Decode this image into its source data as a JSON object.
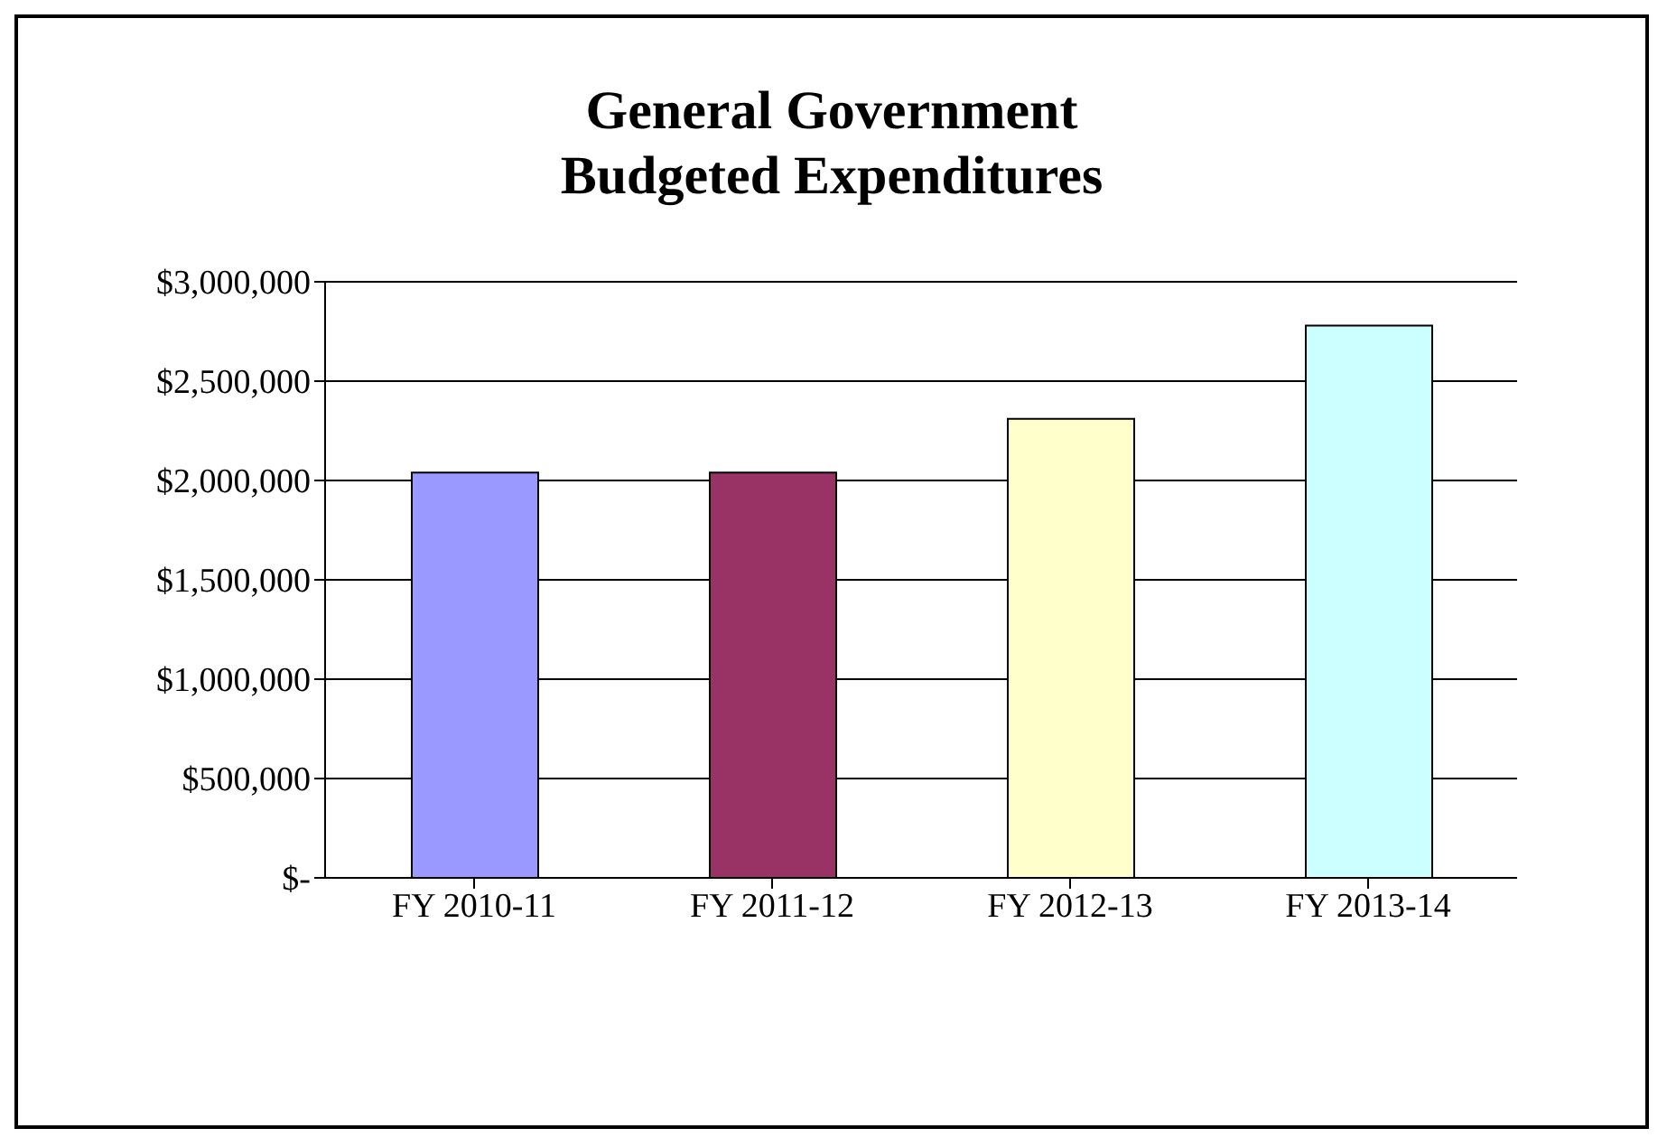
{
  "chart_data": {
    "type": "bar",
    "title": "General Government\nBudgeted Expenditures",
    "categories": [
      "FY 2010-11",
      "FY 2011-12",
      "FY 2012-13",
      "FY 2013-14"
    ],
    "values": [
      2040000,
      2040000,
      2310000,
      2780000
    ],
    "colors": [
      "#9999ff",
      "#993366",
      "#ffffcc",
      "#ccffff"
    ],
    "ylim": [
      0,
      3000000
    ],
    "yticks": [
      {
        "value": 0,
        "label": "$-"
      },
      {
        "value": 500000,
        "label": "$500,000"
      },
      {
        "value": 1000000,
        "label": "$1,000,000"
      },
      {
        "value": 1500000,
        "label": "$1,500,000"
      },
      {
        "value": 2000000,
        "label": "$2,000,000"
      },
      {
        "value": 2500000,
        "label": "$2,500,000"
      },
      {
        "value": 3000000,
        "label": "$3,000,000"
      }
    ],
    "grid": "y",
    "legend": false
  }
}
